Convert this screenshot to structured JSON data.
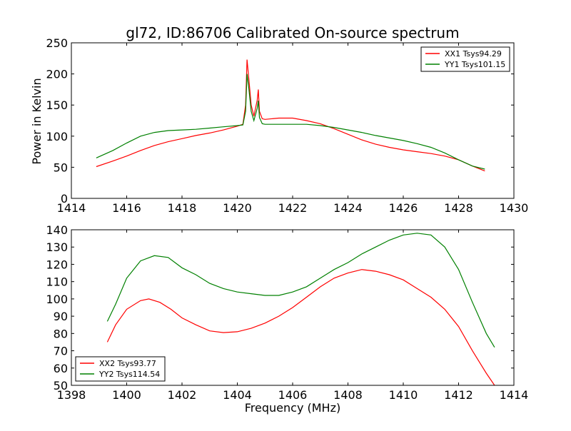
{
  "figure": {
    "title": "gl72, ID:86706 Calibrated On-source spectrum",
    "xlabel": "Frequency (MHz)"
  },
  "chart_data": [
    {
      "type": "line",
      "panel": "top",
      "title": "gl72, ID:86706 Calibrated On-source spectrum",
      "xlabel": "",
      "ylabel": "Power in Kelvin",
      "xlim": [
        1414,
        1430
      ],
      "ylim": [
        0,
        250
      ],
      "xticks": [
        1414,
        1416,
        1418,
        1420,
        1422,
        1424,
        1426,
        1428,
        1430
      ],
      "yticks": [
        0,
        50,
        100,
        150,
        200,
        250
      ],
      "grid": false,
      "legend_position": "top-right",
      "series": [
        {
          "name": "XX1 Tsys94.29",
          "color": "#ff0000",
          "points": [
            [
              1414.9,
              51
            ],
            [
              1415.5,
              60
            ],
            [
              1416,
              68
            ],
            [
              1416.5,
              77
            ],
            [
              1417,
              85
            ],
            [
              1417.5,
              91
            ],
            [
              1418,
              96
            ],
            [
              1418.5,
              101
            ],
            [
              1419,
              105
            ],
            [
              1419.5,
              110
            ],
            [
              1420,
              116
            ],
            [
              1420.2,
              119
            ],
            [
              1420.3,
              150
            ],
            [
              1420.35,
              223
            ],
            [
              1420.42,
              190
            ],
            [
              1420.5,
              150
            ],
            [
              1420.6,
              132
            ],
            [
              1420.72,
              158
            ],
            [
              1420.76,
              175
            ],
            [
              1420.8,
              140
            ],
            [
              1420.9,
              128
            ],
            [
              1421,
              127
            ],
            [
              1421.5,
              129
            ],
            [
              1422,
              129
            ],
            [
              1422.5,
              125
            ],
            [
              1423,
              120
            ],
            [
              1423.5,
              112
            ],
            [
              1424,
              103
            ],
            [
              1424.5,
              94
            ],
            [
              1425,
              87
            ],
            [
              1425.5,
              82
            ],
            [
              1426,
              78
            ],
            [
              1426.5,
              75
            ],
            [
              1427,
              72
            ],
            [
              1427.5,
              68
            ],
            [
              1428,
              62
            ],
            [
              1428.5,
              52
            ],
            [
              1428.95,
              44
            ]
          ]
        },
        {
          "name": "YY1 Tsys101.15",
          "color": "#008000",
          "points": [
            [
              1414.9,
              65
            ],
            [
              1415.5,
              77
            ],
            [
              1416,
              89
            ],
            [
              1416.5,
              100
            ],
            [
              1417,
              106
            ],
            [
              1417.5,
              109
            ],
            [
              1418,
              110
            ],
            [
              1418.5,
              111
            ],
            [
              1419,
              113
            ],
            [
              1419.5,
              115
            ],
            [
              1420,
              117
            ],
            [
              1420.2,
              118
            ],
            [
              1420.3,
              140
            ],
            [
              1420.35,
              200
            ],
            [
              1420.42,
              175
            ],
            [
              1420.5,
              140
            ],
            [
              1420.6,
              125
            ],
            [
              1420.72,
              145
            ],
            [
              1420.76,
              157
            ],
            [
              1420.8,
              130
            ],
            [
              1420.9,
              120
            ],
            [
              1421,
              119
            ],
            [
              1421.5,
              119
            ],
            [
              1422,
              119
            ],
            [
              1422.5,
              119
            ],
            [
              1423,
              117
            ],
            [
              1423.5,
              114
            ],
            [
              1424,
              110
            ],
            [
              1424.5,
              106
            ],
            [
              1425,
              101
            ],
            [
              1425.5,
              97
            ],
            [
              1426,
              93
            ],
            [
              1426.5,
              88
            ],
            [
              1427,
              82
            ],
            [
              1427.5,
              73
            ],
            [
              1428,
              62
            ],
            [
              1428.5,
              52
            ],
            [
              1428.95,
              47
            ]
          ]
        }
      ]
    },
    {
      "type": "line",
      "panel": "bottom",
      "title": "",
      "xlabel": "Frequency (MHz)",
      "ylabel": "",
      "xlim": [
        1398,
        1414
      ],
      "ylim": [
        50,
        140
      ],
      "xticks": [
        1398,
        1400,
        1402,
        1404,
        1406,
        1408,
        1410,
        1412,
        1414
      ],
      "yticks": [
        50,
        60,
        70,
        80,
        90,
        100,
        110,
        120,
        130,
        140
      ],
      "grid": false,
      "legend_position": "bottom-left",
      "series": [
        {
          "name": "XX2 Tsys93.77",
          "color": "#ff0000",
          "points": [
            [
              1399.3,
              75
            ],
            [
              1399.6,
              85
            ],
            [
              1400,
              94
            ],
            [
              1400.5,
              99
            ],
            [
              1400.8,
              100
            ],
            [
              1401.2,
              98
            ],
            [
              1401.6,
              94
            ],
            [
              1402,
              89
            ],
            [
              1402.5,
              85
            ],
            [
              1403,
              81.5
            ],
            [
              1403.5,
              80.5
            ],
            [
              1404,
              81
            ],
            [
              1404.5,
              83
            ],
            [
              1405,
              86
            ],
            [
              1405.5,
              90
            ],
            [
              1406,
              95
            ],
            [
              1406.5,
              101
            ],
            [
              1407,
              107
            ],
            [
              1407.5,
              112
            ],
            [
              1408,
              115
            ],
            [
              1408.5,
              117
            ],
            [
              1409,
              116
            ],
            [
              1409.5,
              114
            ],
            [
              1410,
              111
            ],
            [
              1410.5,
              106
            ],
            [
              1411,
              101
            ],
            [
              1411.5,
              94
            ],
            [
              1412,
              84
            ],
            [
              1412.5,
              70
            ],
            [
              1413,
              57
            ],
            [
              1413.3,
              50
            ]
          ]
        },
        {
          "name": "YY2 Tsys114.54",
          "color": "#008000",
          "points": [
            [
              1399.3,
              87
            ],
            [
              1399.6,
              97
            ],
            [
              1400,
              112
            ],
            [
              1400.5,
              122
            ],
            [
              1401,
              125
            ],
            [
              1401.5,
              124
            ],
            [
              1402,
              118
            ],
            [
              1402.5,
              114
            ],
            [
              1403,
              109
            ],
            [
              1403.5,
              106
            ],
            [
              1404,
              104
            ],
            [
              1404.5,
              103
            ],
            [
              1405,
              102
            ],
            [
              1405.5,
              102
            ],
            [
              1406,
              104
            ],
            [
              1406.5,
              107
            ],
            [
              1407,
              112
            ],
            [
              1407.5,
              117
            ],
            [
              1408,
              121
            ],
            [
              1408.5,
              126
            ],
            [
              1409,
              130
            ],
            [
              1409.5,
              134
            ],
            [
              1410,
              137
            ],
            [
              1410.5,
              138
            ],
            [
              1411,
              137
            ],
            [
              1411.5,
              130
            ],
            [
              1412,
              117
            ],
            [
              1412.5,
              98
            ],
            [
              1413,
              80
            ],
            [
              1413.3,
              72
            ]
          ]
        }
      ]
    }
  ]
}
